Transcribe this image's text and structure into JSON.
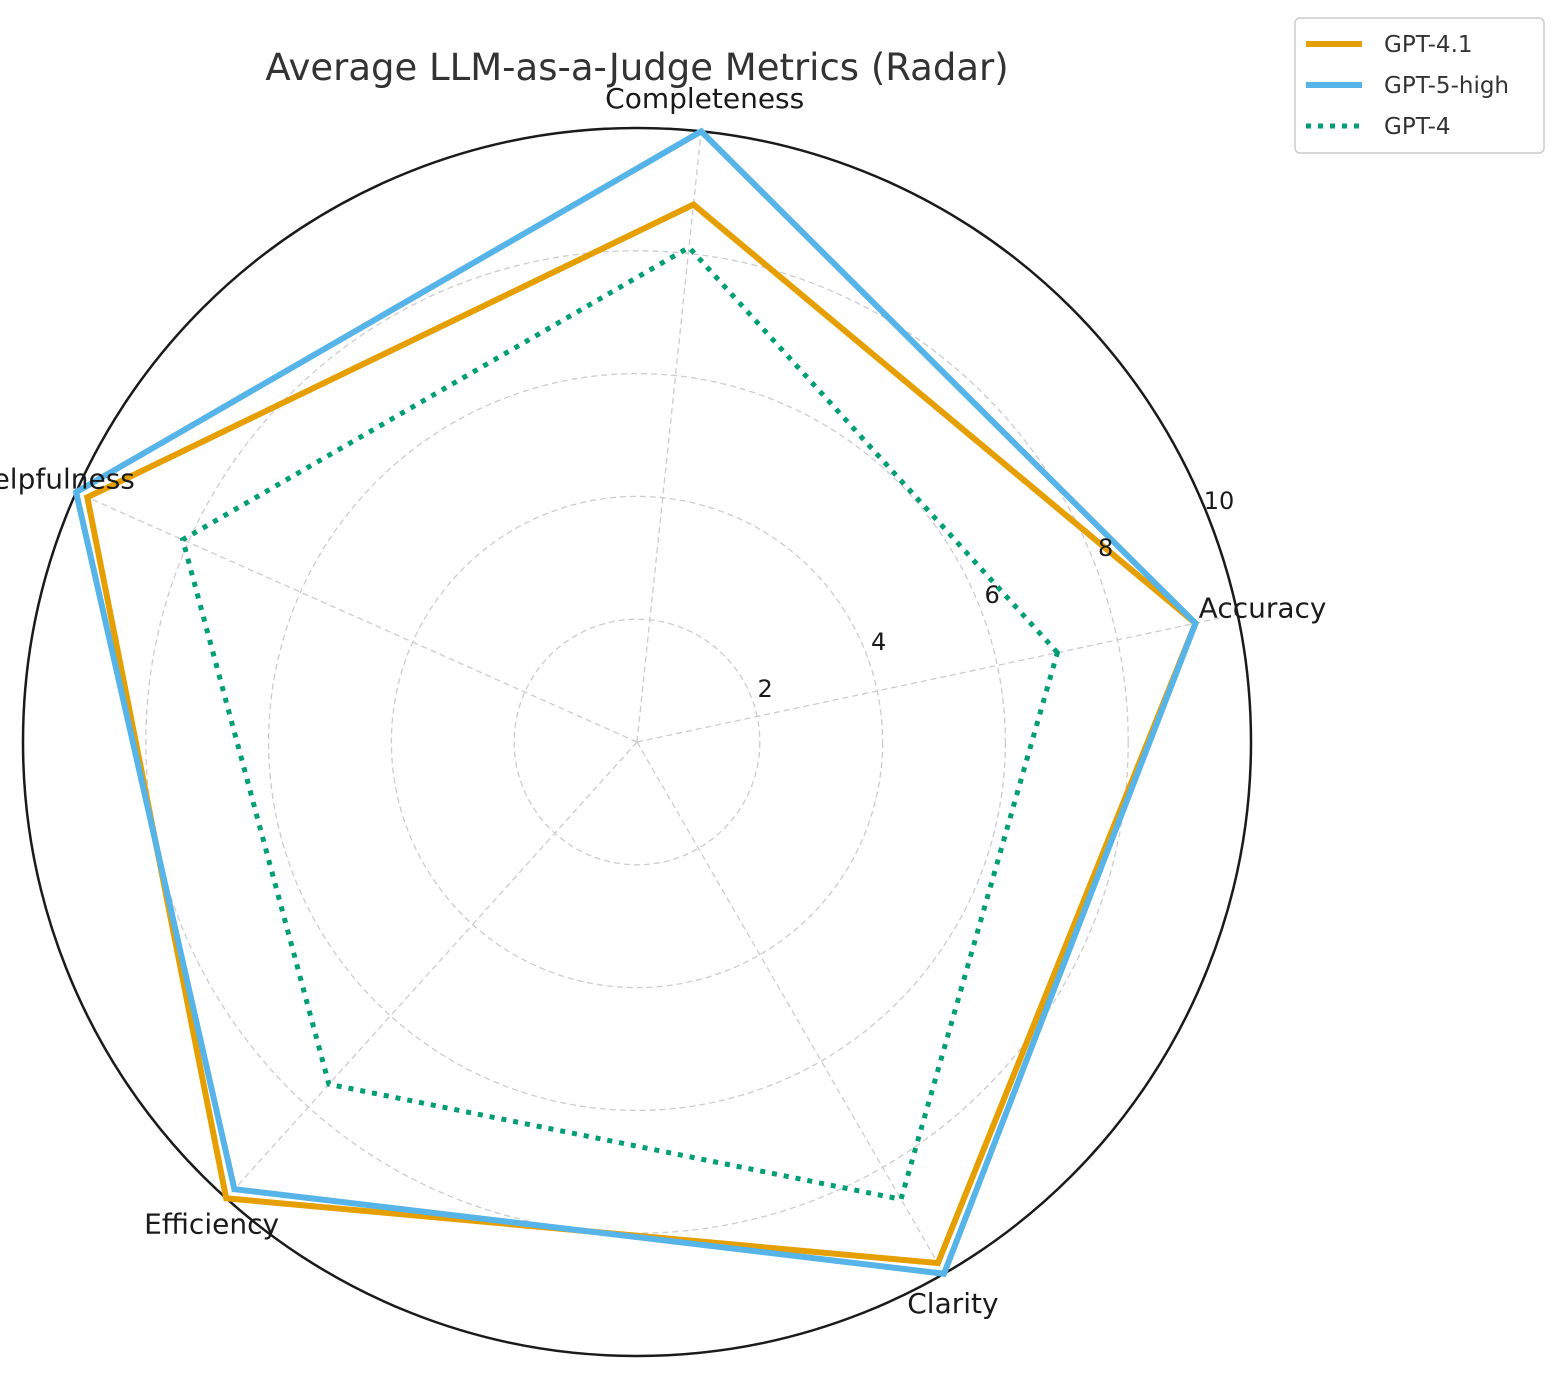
{
  "chart_data": {
    "type": "radar",
    "title": "Average LLM-as-a-Judge Metrics (Radar)",
    "axes": [
      "Accuracy",
      "Completeness",
      "Helpfulness",
      "Efficiency",
      "Clarity"
    ],
    "rlim": [
      0,
      10
    ],
    "rticks": [
      2,
      4,
      6,
      8,
      10
    ],
    "grid": true,
    "legend_position": "top-right",
    "series": [
      {
        "name": "GPT-4.1",
        "color": "#e69f00",
        "style": "solid",
        "values": [
          9.3,
          8.8,
          9.8,
          10.0,
          9.8
        ]
      },
      {
        "name": "GPT-5-high",
        "color": "#56b4e9",
        "style": "solid",
        "values": [
          9.3,
          10.0,
          10.0,
          9.8,
          10.0
        ]
      },
      {
        "name": "GPT-4",
        "color": "#009e73",
        "style": "dotted",
        "values": [
          7.0,
          8.1,
          8.1,
          7.5,
          8.6
        ]
      }
    ]
  }
}
